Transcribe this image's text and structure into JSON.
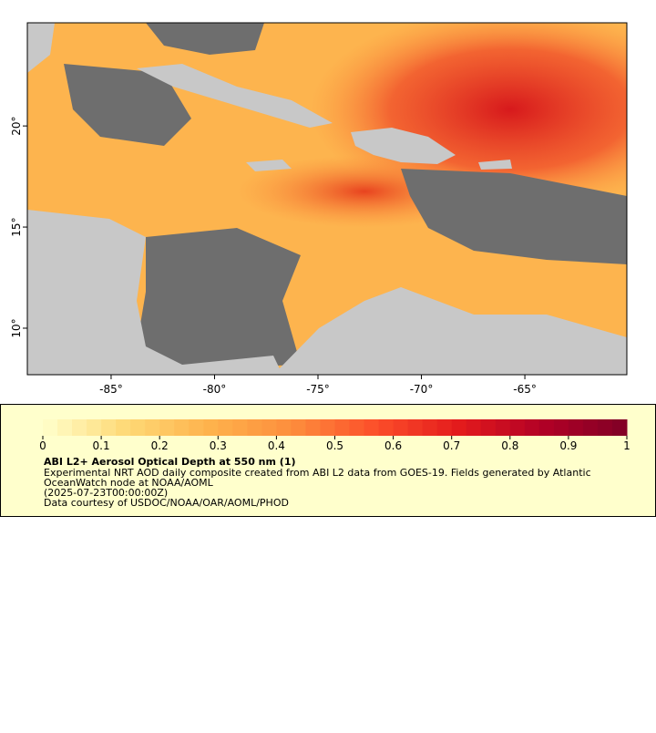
{
  "chart_data": {
    "type": "map",
    "xlim": [
      -89.05,
      -60.07
    ],
    "ylim": [
      7.7,
      25.1
    ],
    "xticks": [
      {
        "value": -85,
        "label": "-85°"
      },
      {
        "value": -80,
        "label": "-80°"
      },
      {
        "value": -75,
        "label": "-75°"
      },
      {
        "value": -70,
        "label": "-70°"
      },
      {
        "value": -65,
        "label": "-65°"
      }
    ],
    "yticks": [
      {
        "value": 10,
        "label": "10°"
      },
      {
        "value": 15,
        "label": "15°"
      },
      {
        "value": 20,
        "label": "20°"
      }
    ],
    "colorbar": {
      "range": [
        0,
        1
      ],
      "ticks": [
        0,
        0.1,
        0.2,
        0.3,
        0.4,
        0.5,
        0.6,
        0.7,
        0.8,
        0.9,
        1
      ],
      "colors": [
        "#ffffcc",
        "#fed976",
        "#feb24c",
        "#fd8d3c",
        "#fc4e2a",
        "#e31a1c",
        "#b10026",
        "#800026"
      ]
    },
    "title": "ABI L2+ Aerosol Optical Depth at 550 nm (1)",
    "notes": [
      "Experimental NRT AOD daily composite created from ABI L2 data from GOES-19. Fields generated by Atlantic",
      "OceanWatch node at NOAA/AOML",
      "(2025-07-23T00:00:00Z)",
      "Data courtesy of USDOC/NOAA/OAR/AOML/PHOD"
    ]
  }
}
